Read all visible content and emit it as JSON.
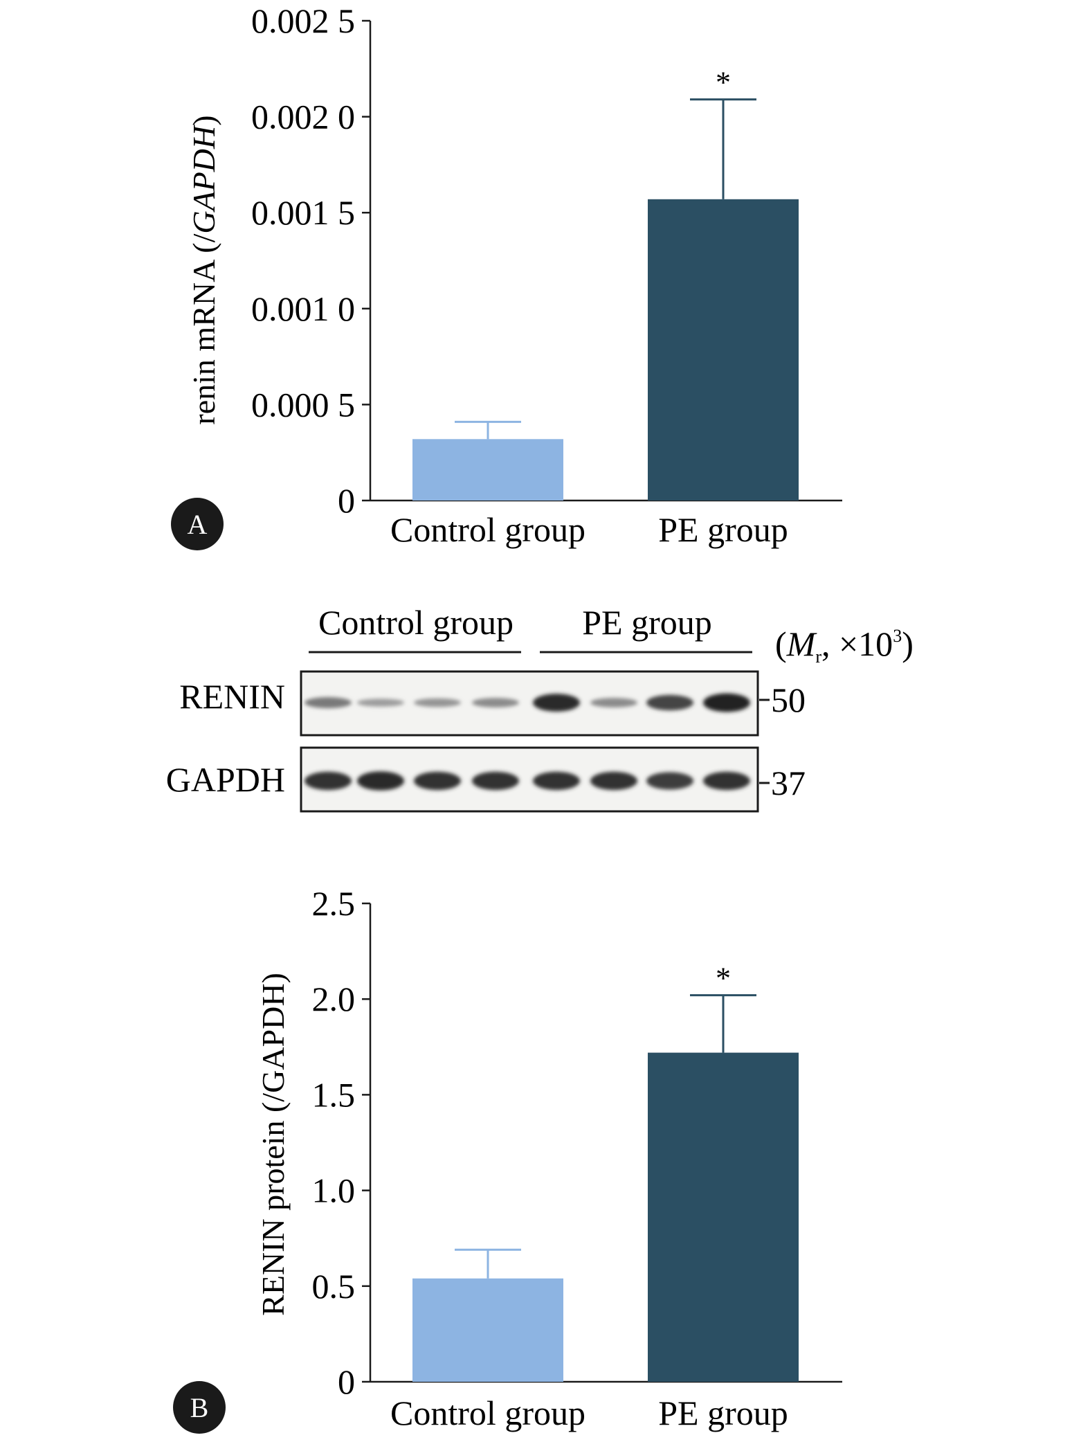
{
  "chart_data": [
    {
      "panel": "A",
      "type": "bar",
      "categories": [
        "Control group",
        "PE group"
      ],
      "values": [
        0.00032,
        0.00157
      ],
      "error_upper": [
        0.00041,
        0.00209
      ],
      "significance": [
        "",
        "*"
      ],
      "ylabel": "renin mRNA (/GAPDH)",
      "xlabel": "",
      "ylim": [
        0,
        0.0025
      ],
      "yticks": [
        0,
        0.0005,
        0.001,
        0.0015,
        0.002,
        0.0025
      ],
      "ytick_labels": [
        "0",
        "0.000 5",
        "0.001 0",
        "0.001 5",
        "0.002 0",
        "0.002 5"
      ],
      "colors": [
        "#8db4e2",
        "#2b4f63"
      ],
      "grid": false
    },
    {
      "panel": "B",
      "type": "bar",
      "categories": [
        "Control group",
        "PE group"
      ],
      "values": [
        0.54,
        1.72
      ],
      "error_upper": [
        0.69,
        2.02
      ],
      "significance": [
        "",
        "*"
      ],
      "ylabel": "RENIN protein (/GAPDH)",
      "xlabel": "",
      "ylim": [
        0,
        2.5
      ],
      "yticks": [
        0,
        0.5,
        1.0,
        1.5,
        2.0,
        2.5
      ],
      "ytick_labels": [
        "0",
        "0.5",
        "1.0",
        "1.5",
        "2.0",
        "2.5"
      ],
      "colors": [
        "#8db4e2",
        "#2b4f63"
      ],
      "grid": false
    }
  ],
  "panel_labels": [
    "A",
    "B"
  ],
  "blot": {
    "groups": [
      "Control group",
      "PE group"
    ],
    "mw_unit": "(Mr, ×10³)",
    "mw_unit_parts": {
      "open": "(",
      "M": "M",
      "sub": "r",
      "rest": ", ×10",
      "sup": "3",
      "close": ")"
    },
    "rows": [
      {
        "name": "RENIN",
        "mw": "50",
        "intensities": [
          0.45,
          0.25,
          0.3,
          0.35,
          0.9,
          0.35,
          0.75,
          0.95
        ]
      },
      {
        "name": "GAPDH",
        "mw": "37",
        "intensities": [
          0.85,
          0.9,
          0.85,
          0.85,
          0.85,
          0.85,
          0.8,
          0.85
        ]
      }
    ]
  }
}
